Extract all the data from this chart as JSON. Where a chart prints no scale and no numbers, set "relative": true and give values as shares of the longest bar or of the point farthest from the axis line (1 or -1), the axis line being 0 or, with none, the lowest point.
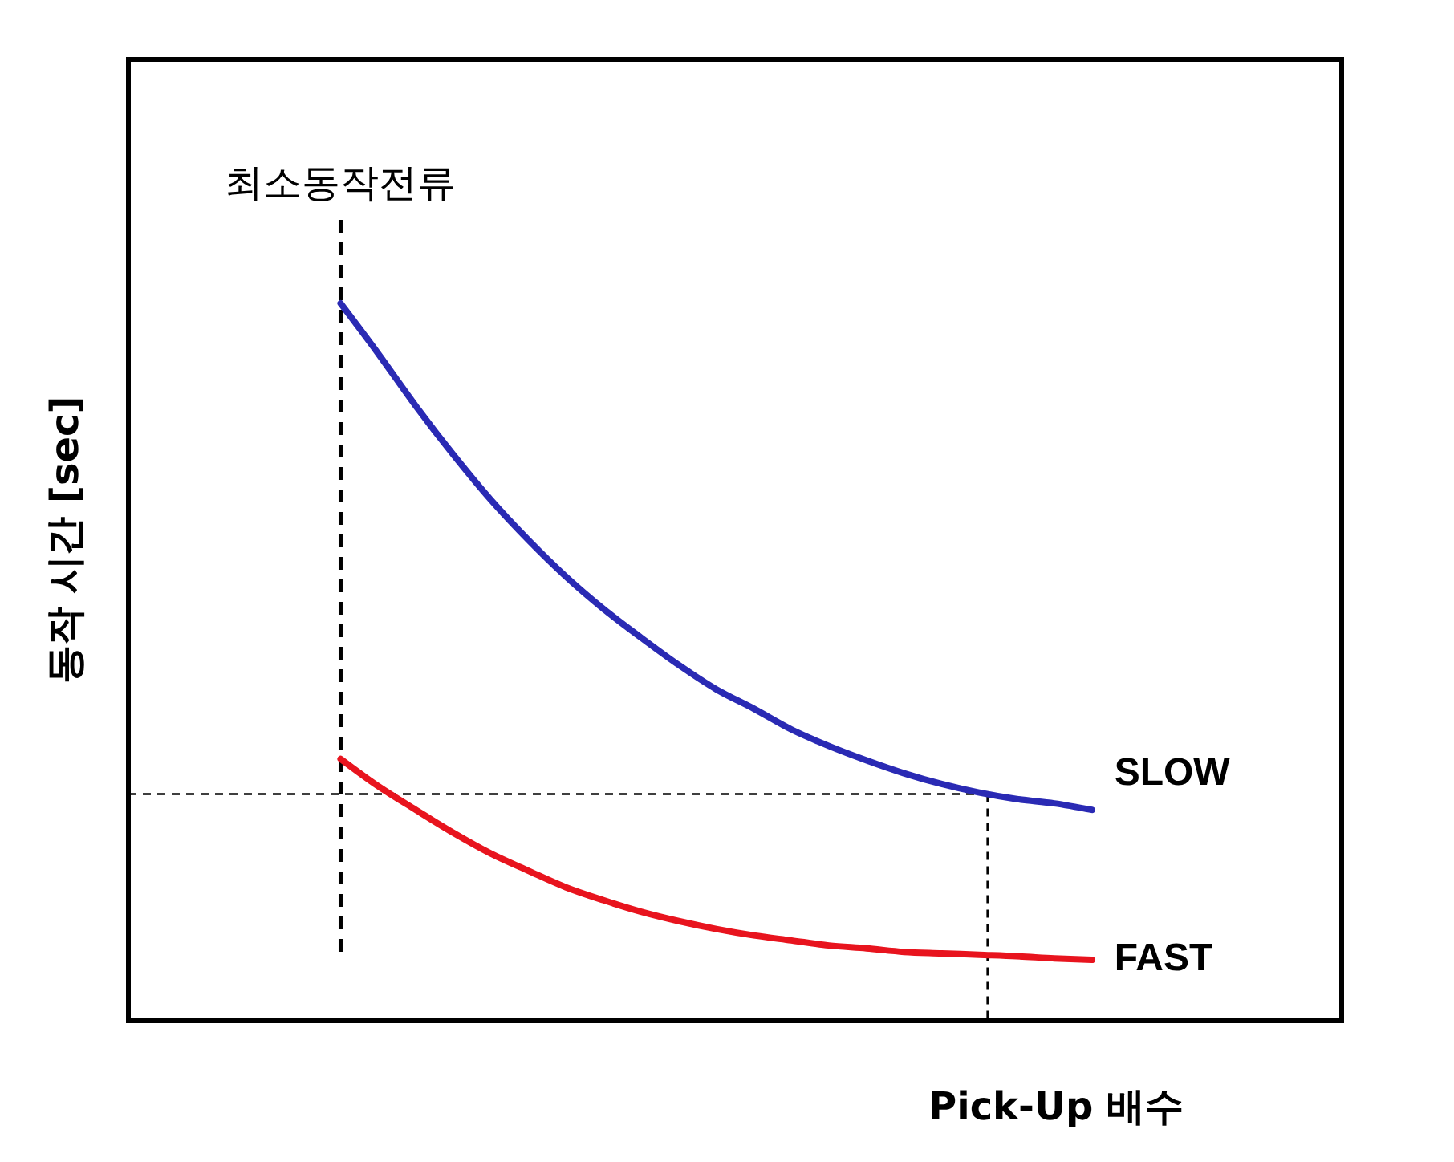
{
  "chart_data": {
    "type": "line",
    "relative": true,
    "xlabel": "Pick-Up 배수",
    "ylabel": "동작 시간 [sec]",
    "annotations": [
      "최소동작전류"
    ],
    "line_style": "solid",
    "marker": "none",
    "categories": [
      null,
      null,
      null,
      null,
      null,
      null,
      null,
      null,
      null,
      null,
      null,
      null,
      null,
      null,
      null,
      null,
      null,
      null,
      null,
      null,
      null,
      null,
      null,
      null,
      null,
      null,
      null,
      null,
      null,
      null,
      null,
      null
    ],
    "series": [
      {
        "name": "SLOW",
        "color": "#2a2ab4",
        "values": [
          null,
          null,
          null,
          null,
          null,
          1,
          0.93,
          0.857,
          0.789,
          0.726,
          0.67,
          0.619,
          0.574,
          0.534,
          0.496,
          0.462,
          0.435,
          0.406,
          0.383,
          0.363,
          0.345,
          0.33,
          0.318,
          0.309,
          0.303,
          0.294,
          null,
          null,
          null,
          null,
          null,
          null
        ]
      },
      {
        "name": "FAST",
        "color": "#e8141e",
        "values": [
          null,
          null,
          null,
          null,
          null,
          0.365,
          0.327,
          0.294,
          0.262,
          0.233,
          0.209,
          0.186,
          0.168,
          0.152,
          0.139,
          0.128,
          0.119,
          0.112,
          0.105,
          0.101,
          0.096,
          0.094,
          0.092,
          0.09,
          0.087,
          0.085,
          null,
          null,
          null,
          null,
          null,
          null
        ]
      }
    ],
    "ref_lines": [
      {
        "axis": "y",
        "value": 0.316,
        "line_style": "dashed",
        "color": "#000000"
      }
    ]
  }
}
